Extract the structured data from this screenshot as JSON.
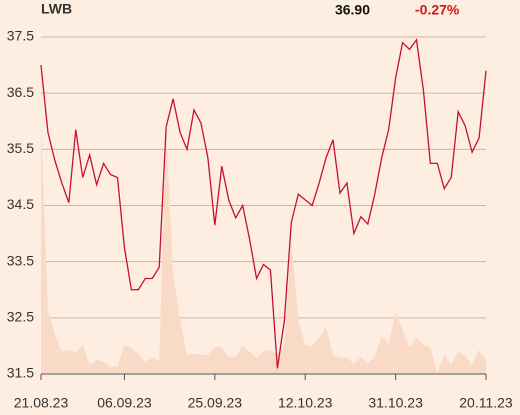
{
  "chart_data": {
    "type": "line",
    "header": {
      "symbol": "LWB",
      "price": "36.90",
      "change": "-0.27%"
    },
    "categories": [
      "21.08.23",
      null,
      null,
      null,
      null,
      null,
      null,
      null,
      null,
      null,
      null,
      null,
      "06.09.23",
      null,
      null,
      null,
      null,
      null,
      null,
      null,
      null,
      null,
      null,
      null,
      null,
      "25.09.23",
      null,
      null,
      null,
      null,
      null,
      null,
      null,
      null,
      null,
      null,
      null,
      null,
      "12.10.23",
      null,
      null,
      null,
      null,
      null,
      null,
      null,
      null,
      null,
      null,
      null,
      null,
      "31.10.23",
      null,
      null,
      null,
      null,
      null,
      null,
      null,
      null,
      null,
      null,
      null,
      null,
      "20.11.23"
    ],
    "series": [
      {
        "color": "#c8102e",
        "values": [
          37.0,
          35.8,
          35.3,
          34.9,
          34.55,
          35.85,
          35.0,
          35.4,
          34.87,
          35.25,
          35.05,
          35.0,
          33.75,
          33.0,
          33.0,
          33.2,
          33.2,
          33.4,
          35.9,
          36.4,
          35.8,
          35.5,
          36.2,
          35.97,
          35.35,
          34.15,
          35.2,
          34.6,
          34.28,
          34.5,
          33.9,
          33.2,
          33.45,
          33.35,
          31.6,
          32.45,
          34.2,
          34.7,
          34.6,
          34.5,
          34.9,
          35.35,
          35.67,
          34.72,
          34.9,
          34.0,
          34.3,
          34.17,
          34.7,
          35.35,
          35.85,
          36.77,
          37.4,
          37.28,
          37.45,
          36.55,
          35.25,
          35.25,
          34.8,
          35.0,
          36.17,
          35.92,
          35.45,
          35.7,
          36.9
        ]
      },
      {
        "type": "area",
        "color": "#f8dac6",
        "values": [
          35.93,
          32.64,
          32.2,
          31.9,
          31.93,
          31.88,
          32.02,
          31.66,
          31.75,
          31.72,
          31.63,
          31.63,
          32.02,
          31.97,
          31.84,
          31.72,
          31.79,
          31.72,
          35.85,
          33.27,
          32.46,
          31.84,
          31.86,
          31.84,
          31.84,
          31.98,
          31.98,
          31.81,
          31.81,
          32.0,
          31.9,
          31.79,
          31.9,
          31.93,
          31.84,
          32.02,
          33.89,
          32.46,
          32.02,
          32.0,
          32.14,
          32.32,
          31.84,
          31.79,
          31.79,
          31.68,
          31.81,
          31.68,
          31.81,
          32.18,
          32.02,
          32.61,
          32.29,
          31.97,
          32.14,
          32.02,
          31.98,
          31.52,
          31.84,
          31.66,
          31.9,
          31.82,
          31.66,
          31.93,
          31.75
        ]
      }
    ],
    "ylim": [
      31.5,
      37.5
    ],
    "yticks": [
      31.5,
      32.5,
      33.5,
      34.5,
      35.5,
      36.5,
      37.5
    ],
    "grid": true
  }
}
